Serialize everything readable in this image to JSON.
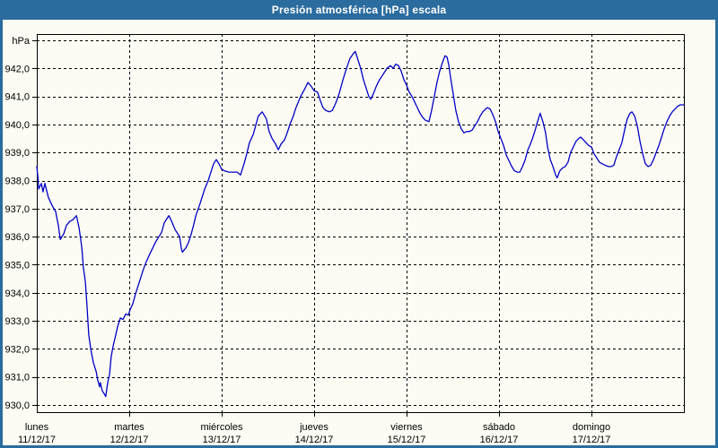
{
  "title": "Presión atmosférica [hPa] escala",
  "colors": {
    "titlebar_bg": "#2B6C9E",
    "frame": "#2B6C9E",
    "window_bg": "#FCFCF4",
    "plot_border": "#000000",
    "gridline": "#000000",
    "line": "#0000C8",
    "title_text": "#FFFFFF",
    "axis_text": "#000000"
  },
  "chart_data": {
    "type": "line",
    "title": "Presión atmosférica [hPa] escala",
    "grid": "dashed",
    "legend": "none",
    "y_axis": {
      "unit_label": "hPa",
      "min": 930,
      "max": 943,
      "tick_step": 1,
      "ticks": [
        {
          "v": 943,
          "label": "hPa"
        },
        {
          "v": 942,
          "label": "942,0"
        },
        {
          "v": 941,
          "label": "941,0"
        },
        {
          "v": 940,
          "label": "940,0"
        },
        {
          "v": 939,
          "label": "939,0"
        },
        {
          "v": 938,
          "label": "938,0"
        },
        {
          "v": 937,
          "label": "937,0"
        },
        {
          "v": 936,
          "label": "936,0"
        },
        {
          "v": 935,
          "label": "935,0"
        },
        {
          "v": 934,
          "label": "934,0"
        },
        {
          "v": 933,
          "label": "933,0"
        },
        {
          "v": 932,
          "label": "932,0"
        },
        {
          "v": 931,
          "label": "931,0"
        },
        {
          "v": 930,
          "label": "930,0"
        }
      ]
    },
    "x_axis": {
      "total_hours": 168,
      "day_width_hours": 24,
      "days": [
        {
          "name": "lunes",
          "date": "11/12/17",
          "start_hour": 0
        },
        {
          "name": "martes",
          "date": "12/12/17",
          "start_hour": 24
        },
        {
          "name": "miércoles",
          "date": "13/12/17",
          "start_hour": 48
        },
        {
          "name": "jueves",
          "date": "14/12/17",
          "start_hour": 72
        },
        {
          "name": "viernes",
          "date": "15/12/17",
          "start_hour": 96
        },
        {
          "name": "sábado",
          "date": "16/12/17",
          "start_hour": 120
        },
        {
          "name": "domingo",
          "date": "17/12/17",
          "start_hour": 144
        }
      ]
    },
    "series": [
      {
        "name": "Presión atmosférica",
        "unit": "hPa",
        "color": "#0000C8",
        "points": [
          [
            0,
            938.5
          ],
          [
            0.3,
            938.1
          ],
          [
            0.5,
            937.7
          ],
          [
            1.2,
            937.9
          ],
          [
            1.6,
            937.6
          ],
          [
            2.1,
            937.9
          ],
          [
            3,
            937.4
          ],
          [
            4,
            937.1
          ],
          [
            4.9,
            936.9
          ],
          [
            5.6,
            936.4
          ],
          [
            6.1,
            935.9
          ],
          [
            6.5,
            936
          ],
          [
            7,
            936.1
          ],
          [
            7.7,
            936.4
          ],
          [
            8.6,
            936.55
          ],
          [
            9.3,
            936.6
          ],
          [
            10.3,
            936.75
          ],
          [
            11,
            936.3
          ],
          [
            11.7,
            935.6
          ],
          [
            12.1,
            934.9
          ],
          [
            12.6,
            934.4
          ],
          [
            13,
            933.6
          ],
          [
            13.5,
            932.5
          ],
          [
            14,
            932
          ],
          [
            14.7,
            931.5
          ],
          [
            15.4,
            931.2
          ],
          [
            15.8,
            930.9
          ],
          [
            16.3,
            930.65
          ],
          [
            16.5,
            930.8
          ],
          [
            17,
            930.5
          ],
          [
            17.5,
            930.4
          ],
          [
            17.9,
            930.3
          ],
          [
            18.4,
            930.8
          ],
          [
            18.9,
            931.1
          ],
          [
            19.3,
            931.7
          ],
          [
            19.8,
            932.1
          ],
          [
            20.5,
            932.5
          ],
          [
            21,
            932.8
          ],
          [
            21.7,
            933.1
          ],
          [
            22.4,
            933.05
          ],
          [
            23.1,
            933.25
          ],
          [
            23.8,
            933.2
          ],
          [
            24.2,
            933.4
          ],
          [
            24.9,
            933.6
          ],
          [
            25.6,
            933.95
          ],
          [
            26.3,
            934.25
          ],
          [
            27,
            934.55
          ],
          [
            27.7,
            934.85
          ],
          [
            28.4,
            935.1
          ],
          [
            29.4,
            935.4
          ],
          [
            30.1,
            935.6
          ],
          [
            30.8,
            935.8
          ],
          [
            31.7,
            936
          ],
          [
            32.4,
            936.15
          ],
          [
            33.1,
            936.5
          ],
          [
            33.8,
            936.65
          ],
          [
            34.3,
            936.75
          ],
          [
            35,
            936.55
          ],
          [
            35.9,
            936.25
          ],
          [
            36.6,
            936.1
          ],
          [
            37.1,
            936
          ],
          [
            37.5,
            935.6
          ],
          [
            37.8,
            935.45
          ],
          [
            38.7,
            935.6
          ],
          [
            39.4,
            935.8
          ],
          [
            40.1,
            936.1
          ],
          [
            40.6,
            936.35
          ],
          [
            41.3,
            936.75
          ],
          [
            42.2,
            937.1
          ],
          [
            42.9,
            937.4
          ],
          [
            43.6,
            937.7
          ],
          [
            44.5,
            938
          ],
          [
            45.2,
            938.3
          ],
          [
            45.9,
            938.6
          ],
          [
            46.6,
            938.75
          ],
          [
            47.3,
            938.6
          ],
          [
            48,
            938.4
          ],
          [
            48.7,
            938.35
          ],
          [
            49.9,
            938.3
          ],
          [
            51,
            938.3
          ],
          [
            52,
            938.3
          ],
          [
            52.9,
            938.2
          ],
          [
            53.8,
            938.6
          ],
          [
            54.5,
            938.95
          ],
          [
            55.2,
            939.35
          ],
          [
            56.2,
            939.65
          ],
          [
            56.9,
            940
          ],
          [
            57.5,
            940.3
          ],
          [
            58.5,
            940.45
          ],
          [
            59.6,
            940.2
          ],
          [
            60.3,
            939.75
          ],
          [
            61.1,
            939.5
          ],
          [
            62,
            939.3
          ],
          [
            62.7,
            939.1
          ],
          [
            63.4,
            939.3
          ],
          [
            64.3,
            939.45
          ],
          [
            65,
            939.7
          ],
          [
            65.7,
            940
          ],
          [
            66.6,
            940.3
          ],
          [
            67.3,
            940.6
          ],
          [
            68.5,
            941
          ],
          [
            69.7,
            941.3
          ],
          [
            70.4,
            941.5
          ],
          [
            71.3,
            941.35
          ],
          [
            72,
            941.2
          ],
          [
            72.9,
            941.15
          ],
          [
            73.6,
            940.85
          ],
          [
            74.3,
            940.6
          ],
          [
            75,
            940.5
          ],
          [
            76,
            940.45
          ],
          [
            76.7,
            940.5
          ],
          [
            77.6,
            940.75
          ],
          [
            78.5,
            941.1
          ],
          [
            79.5,
            941.6
          ],
          [
            80.4,
            942
          ],
          [
            81.3,
            942.35
          ],
          [
            82.3,
            942.55
          ],
          [
            82.7,
            942.6
          ],
          [
            83.4,
            942.3
          ],
          [
            84.1,
            942
          ],
          [
            84.8,
            941.6
          ],
          [
            85.5,
            941.3
          ],
          [
            86.2,
            941
          ],
          [
            86.7,
            940.9
          ],
          [
            87.4,
            941.1
          ],
          [
            88.1,
            941.35
          ],
          [
            88.8,
            941.55
          ],
          [
            89.5,
            941.7
          ],
          [
            90.2,
            941.85
          ],
          [
            90.9,
            942
          ],
          [
            91.8,
            942.1
          ],
          [
            92.5,
            942
          ],
          [
            93.2,
            942.15
          ],
          [
            93.9,
            942.1
          ],
          [
            94.6,
            941.9
          ],
          [
            95.3,
            941.6
          ],
          [
            96,
            941.4
          ],
          [
            96.7,
            941.15
          ],
          [
            97.4,
            941
          ],
          [
            98.1,
            940.8
          ],
          [
            98.8,
            940.6
          ],
          [
            99.5,
            940.4
          ],
          [
            100.2,
            940.25
          ],
          [
            100.9,
            940.15
          ],
          [
            101.8,
            940.1
          ],
          [
            102.5,
            940.5
          ],
          [
            103.2,
            941
          ],
          [
            103.9,
            941.5
          ],
          [
            104.6,
            941.9
          ],
          [
            105.3,
            942.2
          ],
          [
            106,
            942.45
          ],
          [
            106.5,
            942.4
          ],
          [
            107,
            942.1
          ],
          [
            107.4,
            941.7
          ],
          [
            108.1,
            941.1
          ],
          [
            108.8,
            940.5
          ],
          [
            109.5,
            940.1
          ],
          [
            110.2,
            939.85
          ],
          [
            110.9,
            939.7
          ],
          [
            111.6,
            939.75
          ],
          [
            112.3,
            939.75
          ],
          [
            113,
            939.8
          ],
          [
            113.7,
            939.95
          ],
          [
            114.4,
            940.1
          ],
          [
            115.1,
            940.3
          ],
          [
            115.8,
            940.45
          ],
          [
            116.5,
            940.55
          ],
          [
            117,
            940.6
          ],
          [
            117.7,
            940.55
          ],
          [
            118.4,
            940.35
          ],
          [
            119.1,
            940.1
          ],
          [
            119.8,
            939.75
          ],
          [
            120.5,
            939.5
          ],
          [
            121.2,
            939.25
          ],
          [
            121.9,
            938.9
          ],
          [
            122.6,
            938.7
          ],
          [
            123.3,
            938.5
          ],
          [
            124,
            938.35
          ],
          [
            124.7,
            938.3
          ],
          [
            125.4,
            938.3
          ],
          [
            126.1,
            938.5
          ],
          [
            126.8,
            938.75
          ],
          [
            127.5,
            939.1
          ],
          [
            128,
            939.25
          ],
          [
            128.7,
            939.5
          ],
          [
            129.4,
            939.8
          ],
          [
            130,
            940.1
          ],
          [
            130.7,
            940.4
          ],
          [
            131.4,
            940.1
          ],
          [
            132.1,
            939.7
          ],
          [
            132.6,
            939.2
          ],
          [
            133.3,
            938.75
          ],
          [
            134,
            938.5
          ],
          [
            134.7,
            938.2
          ],
          [
            135.1,
            938.1
          ],
          [
            135.8,
            938.35
          ],
          [
            136.5,
            938.45
          ],
          [
            137.2,
            938.5
          ],
          [
            137.9,
            938.65
          ],
          [
            138.6,
            939
          ],
          [
            139.3,
            939.2
          ],
          [
            140,
            939.4
          ],
          [
            140.7,
            939.5
          ],
          [
            141.2,
            939.55
          ],
          [
            141.9,
            939.45
          ],
          [
            142.6,
            939.35
          ],
          [
            143.3,
            939.25
          ],
          [
            144,
            939.2
          ],
          [
            144.7,
            938.95
          ],
          [
            145.4,
            938.8
          ],
          [
            146.1,
            938.65
          ],
          [
            146.8,
            938.6
          ],
          [
            147.5,
            938.55
          ],
          [
            148.4,
            938.5
          ],
          [
            149.1,
            938.5
          ],
          [
            149.8,
            938.55
          ],
          [
            150.5,
            938.85
          ],
          [
            151.2,
            939.1
          ],
          [
            151.9,
            939.35
          ],
          [
            152.6,
            939.8
          ],
          [
            153.3,
            940.2
          ],
          [
            154,
            940.4
          ],
          [
            154.5,
            940.45
          ],
          [
            155.2,
            940.3
          ],
          [
            155.9,
            939.95
          ],
          [
            156.6,
            939.4
          ],
          [
            157.3,
            938.95
          ],
          [
            158,
            938.6
          ],
          [
            158.7,
            938.5
          ],
          [
            159.4,
            938.55
          ],
          [
            160.1,
            938.75
          ],
          [
            160.8,
            939
          ],
          [
            161.5,
            939.25
          ],
          [
            162.2,
            939.55
          ],
          [
            162.9,
            939.85
          ],
          [
            163.6,
            940.1
          ],
          [
            164.3,
            940.3
          ],
          [
            165,
            940.45
          ],
          [
            165.7,
            940.55
          ],
          [
            166.4,
            940.65
          ],
          [
            167.1,
            940.7
          ],
          [
            168,
            940.7
          ]
        ]
      }
    ]
  }
}
